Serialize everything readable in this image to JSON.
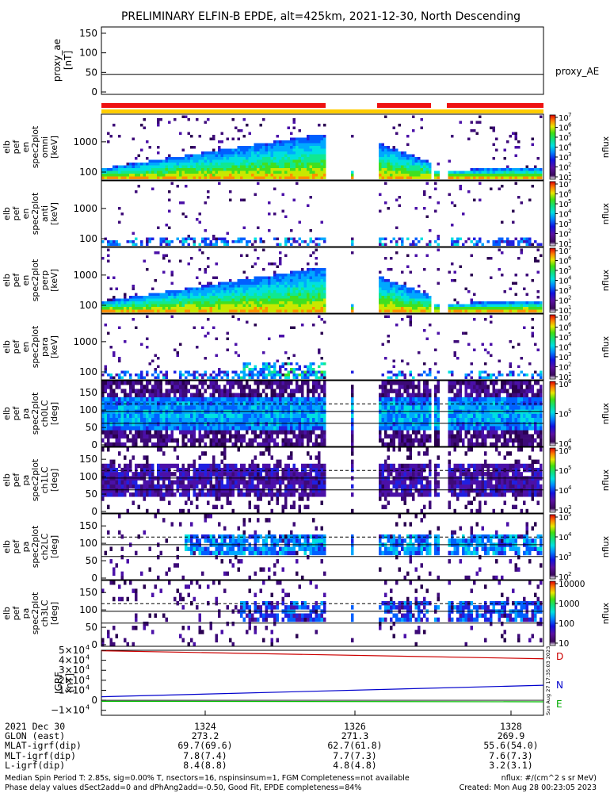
{
  "title": "PRELIMINARY ELFIN-B EPDE, alt=425km, 2021-12-30, North Descending",
  "colors": {
    "bar_red": "#ee1111",
    "bar_yellow": "#ffcc00",
    "grf_d": "#cc0000",
    "grf_n": "#0000cc",
    "grf_e": "#00bb00"
  },
  "panels": {
    "proxy_ae": {
      "ylabel": [
        "proxy_ae",
        "[nT]"
      ],
      "yticks": [
        "150",
        "100",
        "50",
        "0"
      ],
      "series_label": "proxy_AE",
      "value": 45
    },
    "en_spec": [
      {
        "ylabel": [
          "elb",
          "pef",
          "en",
          "spec2plot",
          "omni",
          "[keV]"
        ],
        "yticks": [
          "1000",
          "100"
        ]
      },
      {
        "ylabel": [
          "elb",
          "pef",
          "en",
          "spec2plot",
          "anti",
          "[keV]"
        ],
        "yticks": [
          "1000",
          "100"
        ]
      },
      {
        "ylabel": [
          "elb",
          "pef",
          "en",
          "spec2plot",
          "perp",
          "[keV]"
        ],
        "yticks": [
          "1000",
          "100"
        ]
      },
      {
        "ylabel": [
          "elb",
          "pef",
          "en",
          "spec2plot",
          "para",
          "[keV]"
        ],
        "yticks": [
          "1000",
          "100"
        ]
      }
    ],
    "pa_spec": [
      {
        "ylabel": [
          "elb",
          "pef",
          "pa",
          "spec2plot",
          "ch0LC",
          "[deg]"
        ],
        "yticks": [
          "150",
          "100",
          "50",
          "0"
        ]
      },
      {
        "ylabel": [
          "elb",
          "pef",
          "pa",
          "spec2plot",
          "ch1LC",
          "[deg]"
        ],
        "yticks": [
          "150",
          "100",
          "50",
          "0"
        ]
      },
      {
        "ylabel": [
          "elb",
          "pef",
          "pa",
          "spec2plot",
          "ch2LC",
          "[deg]"
        ],
        "yticks": [
          "150",
          "100",
          "50",
          "0"
        ]
      },
      {
        "ylabel": [
          "elb",
          "pef",
          "pa",
          "spec2plot",
          "ch3LC",
          "[deg]"
        ],
        "yticks": [
          "150",
          "100",
          "50",
          "0"
        ]
      }
    ],
    "colorbars": [
      {
        "ticks": [
          "7",
          "6",
          "5",
          "4",
          "3",
          "2",
          "1"
        ],
        "label": "nflux"
      },
      {
        "ticks": [
          "7",
          "6",
          "5",
          "4",
          "3",
          "2",
          "1"
        ],
        "label": "nflux"
      },
      {
        "ticks": [
          "7",
          "6",
          "5",
          "4",
          "3",
          "2",
          "1"
        ],
        "label": "nflux"
      },
      {
        "ticks": [
          "7",
          "6",
          "5",
          "4",
          "3",
          "2",
          "1"
        ],
        "label": "nflux"
      },
      {
        "ticks": [
          "6",
          "5",
          "4"
        ],
        "label": "nflux"
      },
      {
        "ticks": [
          "6",
          "5",
          "4",
          "3"
        ],
        "label": "nflux"
      },
      {
        "ticks": [
          "5",
          "4",
          "3",
          "2"
        ],
        "label": "nflux"
      },
      {
        "ticks_plain": [
          "10000",
          "1000",
          "100",
          "10"
        ],
        "label": "nflux"
      }
    ],
    "grf": {
      "ylabel": [
        "IGRF",
        "[nT]"
      ],
      "yticks": [
        "5",
        "4",
        "3",
        "2",
        "1",
        "0",
        "−1"
      ],
      "zero_tick": "0",
      "series": [
        {
          "name": "D",
          "values": [
            49500,
            41500
          ]
        },
        {
          "name": "N",
          "values": [
            3500,
            15000
          ]
        },
        {
          "name": "E",
          "values": [
            -1000,
            -1500
          ]
        }
      ],
      "ylim": [
        -15000,
        50000
      ],
      "vertical_stamp": "Sun Aug 27 17:35:03 2023"
    }
  },
  "chart_data": {
    "type": "heatmap",
    "title": "PRELIMINARY ELFIN-B EPDE, alt=425km, 2021-12-30, North Descending",
    "x_ticks": [
      "1324",
      "1326",
      "1328"
    ],
    "panels": [
      {
        "name": "proxy_ae",
        "type": "line",
        "ylim": [
          0,
          150
        ],
        "value": 45,
        "series": "proxy_AE"
      },
      {
        "name": "omni",
        "type": "heatmap",
        "yscale": "log",
        "ylim": [
          60,
          5000
        ],
        "zscale": "log",
        "zlim": [
          10,
          10000000
        ]
      },
      {
        "name": "anti",
        "type": "heatmap",
        "yscale": "log",
        "ylim": [
          60,
          5000
        ],
        "zscale": "log",
        "zlim": [
          10,
          10000000
        ]
      },
      {
        "name": "perp",
        "type": "heatmap",
        "yscale": "log",
        "ylim": [
          60,
          5000
        ],
        "zscale": "log",
        "zlim": [
          10,
          10000000
        ]
      },
      {
        "name": "para",
        "type": "heatmap",
        "yscale": "log",
        "ylim": [
          60,
          5000
        ],
        "zscale": "log",
        "zlim": [
          10,
          10000000
        ]
      },
      {
        "name": "ch0LC",
        "type": "heatmap",
        "ylim": [
          0,
          180
        ],
        "zscale": "log",
        "zlim": [
          1000,
          10000000
        ]
      },
      {
        "name": "ch1LC",
        "type": "heatmap",
        "ylim": [
          0,
          180
        ],
        "zscale": "log",
        "zlim": [
          1000,
          1000000
        ]
      },
      {
        "name": "ch2LC",
        "type": "heatmap",
        "ylim": [
          0,
          180
        ],
        "zscale": "log",
        "zlim": [
          100,
          100000
        ]
      },
      {
        "name": "ch3LC",
        "type": "heatmap",
        "ylim": [
          0,
          180
        ],
        "zscale": "log",
        "zlim": [
          10,
          10000
        ]
      },
      {
        "name": "IGRF",
        "type": "line",
        "ylim": [
          -15000,
          50000
        ],
        "series": [
          {
            "name": "D",
            "values": [
              49500,
              41500
            ]
          },
          {
            "name": "N",
            "values": [
              3500,
              15000
            ]
          },
          {
            "name": "E",
            "values": [
              -1000,
              -1500
            ]
          }
        ]
      }
    ]
  },
  "axis_table": {
    "rows": [
      {
        "label": "2021 Dec 30",
        "values": [
          "1324",
          "1326",
          "1328"
        ]
      },
      {
        "label": "GLON (east)",
        "values": [
          "273.2",
          "271.3",
          "269.9"
        ]
      },
      {
        "label": "MLAT-igrf(dip)",
        "values": [
          "69.7(69.6)",
          "62.7(61.8)",
          "55.6(54.0)"
        ]
      },
      {
        "label": "MLT-igrf(dip)",
        "values": [
          "7.8(7.4)",
          "7.7(7.3)",
          "7.6(7.3)"
        ]
      },
      {
        "label": "L-igrf(dip)",
        "values": [
          "8.4(8.8)",
          "4.8(4.8)",
          "3.2(3.1)"
        ]
      }
    ]
  },
  "footer": {
    "line1_left": "Median Spin Period T: 2.85s, sig=0.00% T, nsectors=16, nspinsinsum=1, FGM Completeness=not available",
    "line2_left": "Phase delay values dSect2add=0 and dPhAng2add=-0.50, Good Fit, EPDE completeness=84%",
    "line1_right": "nflux: #/(cm^2 s sr MeV)",
    "line2_right": "Created: Mon Aug 28 00:23:05 2023"
  }
}
